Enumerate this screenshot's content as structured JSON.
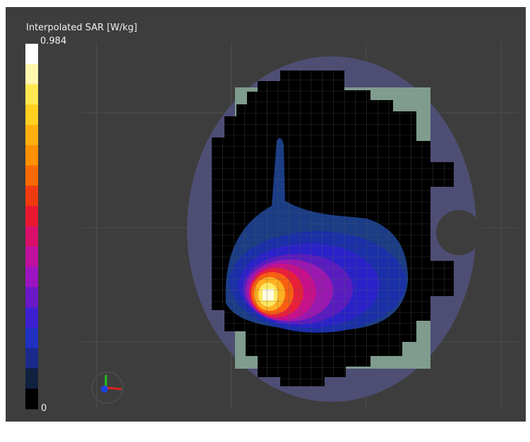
{
  "colorbar": {
    "title": "Interpolated SAR [W/kg]",
    "max_label": "0.984",
    "min_label": "0"
  }
}
